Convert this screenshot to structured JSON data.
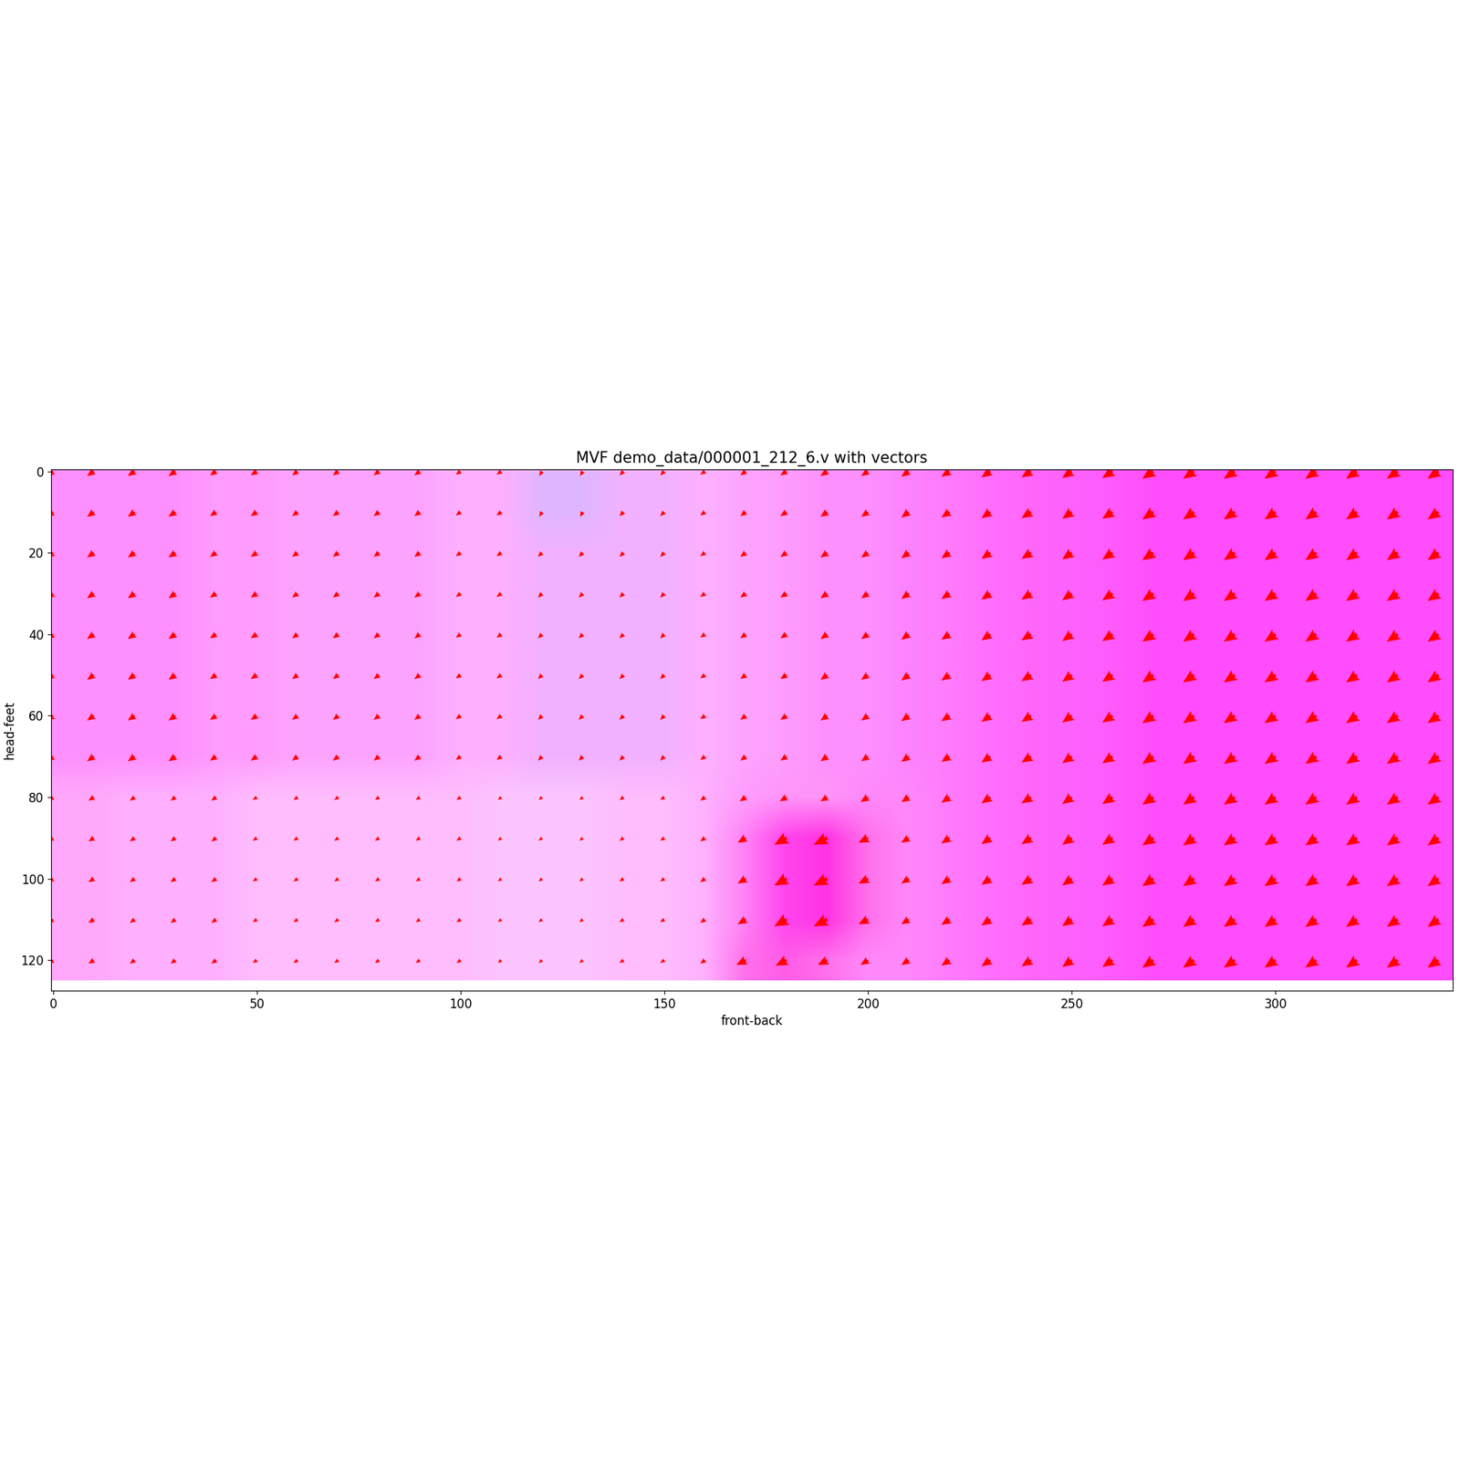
{
  "chart_data": {
    "type": "quiver",
    "title": "MVF demo_data/000001_212_6.v with vectors",
    "x_label": "front-back",
    "y_label": "head-feet",
    "color": "red",
    "xlim": [
      -0.5,
      343.5
    ],
    "ylim": [
      127.5,
      -0.5
    ],
    "xticks": [
      0,
      50,
      100,
      150,
      200,
      250,
      300
    ],
    "yticks": [
      0,
      20,
      40,
      60,
      80,
      100,
      120
    ],
    "x": [
      0,
      10,
      20,
      30,
      40,
      50,
      60,
      70,
      80,
      90,
      100,
      110,
      120,
      130,
      140,
      150,
      160,
      170,
      180,
      190,
      200,
      210,
      220,
      230,
      240,
      250,
      260,
      270,
      280,
      290,
      300,
      310,
      320,
      330,
      340
    ],
    "y": [
      0,
      10,
      20,
      30,
      40,
      50,
      60,
      70,
      80,
      90,
      100,
      110,
      120
    ],
    "u": [
      [
        -0.5,
        -0.5,
        -0.5,
        -0.5,
        -0.45,
        -0.45,
        -0.4,
        -0.4,
        -0.4,
        -0.4,
        -0.35,
        -0.35,
        -0.2,
        -0.2,
        -0.3,
        -0.3,
        -0.35,
        -0.4,
        -0.45,
        -0.5,
        -0.5,
        -0.55,
        -0.6,
        -0.65,
        -0.7,
        -0.7,
        -0.75,
        -0.8,
        -0.8,
        -0.8,
        -0.8,
        -0.8,
        -0.8,
        -0.8,
        -0.8
      ],
      [
        -0.5,
        -0.5,
        -0.5,
        -0.5,
        -0.45,
        -0.45,
        -0.4,
        -0.4,
        -0.4,
        -0.4,
        -0.35,
        -0.35,
        -0.2,
        -0.2,
        -0.3,
        -0.3,
        -0.35,
        -0.4,
        -0.45,
        -0.5,
        -0.5,
        -0.55,
        -0.6,
        -0.65,
        -0.7,
        -0.7,
        -0.75,
        -0.8,
        -0.8,
        -0.8,
        -0.8,
        -0.8,
        -0.8,
        -0.8,
        -0.8
      ],
      [
        -0.5,
        -0.5,
        -0.5,
        -0.5,
        -0.45,
        -0.45,
        -0.4,
        -0.4,
        -0.4,
        -0.4,
        -0.35,
        -0.35,
        -0.3,
        -0.3,
        -0.3,
        -0.3,
        -0.35,
        -0.4,
        -0.45,
        -0.5,
        -0.5,
        -0.55,
        -0.6,
        -0.65,
        -0.7,
        -0.7,
        -0.75,
        -0.8,
        -0.8,
        -0.8,
        -0.8,
        -0.8,
        -0.8,
        -0.8,
        -0.8
      ],
      [
        -0.5,
        -0.5,
        -0.5,
        -0.5,
        -0.45,
        -0.45,
        -0.4,
        -0.4,
        -0.4,
        -0.4,
        -0.35,
        -0.35,
        -0.3,
        -0.3,
        -0.3,
        -0.3,
        -0.35,
        -0.4,
        -0.45,
        -0.5,
        -0.5,
        -0.55,
        -0.6,
        -0.65,
        -0.7,
        -0.7,
        -0.75,
        -0.8,
        -0.8,
        -0.8,
        -0.8,
        -0.8,
        -0.8,
        -0.8,
        -0.8
      ],
      [
        -0.5,
        -0.5,
        -0.5,
        -0.5,
        -0.45,
        -0.45,
        -0.4,
        -0.4,
        -0.4,
        -0.4,
        -0.35,
        -0.35,
        -0.3,
        -0.3,
        -0.3,
        -0.3,
        -0.35,
        -0.4,
        -0.45,
        -0.5,
        -0.5,
        -0.55,
        -0.6,
        -0.65,
        -0.7,
        -0.7,
        -0.75,
        -0.8,
        -0.8,
        -0.8,
        -0.8,
        -0.8,
        -0.8,
        -0.8,
        -0.8
      ],
      [
        -0.5,
        -0.5,
        -0.5,
        -0.5,
        -0.45,
        -0.45,
        -0.4,
        -0.4,
        -0.4,
        -0.4,
        -0.35,
        -0.35,
        -0.3,
        -0.3,
        -0.3,
        -0.3,
        -0.35,
        -0.4,
        -0.45,
        -0.5,
        -0.5,
        -0.55,
        -0.6,
        -0.65,
        -0.7,
        -0.7,
        -0.75,
        -0.8,
        -0.8,
        -0.8,
        -0.8,
        -0.8,
        -0.8,
        -0.8,
        -0.8
      ],
      [
        -0.5,
        -0.5,
        -0.5,
        -0.5,
        -0.45,
        -0.45,
        -0.4,
        -0.4,
        -0.4,
        -0.4,
        -0.35,
        -0.35,
        -0.3,
        -0.3,
        -0.3,
        -0.3,
        -0.35,
        -0.4,
        -0.45,
        -0.5,
        -0.5,
        -0.55,
        -0.6,
        -0.65,
        -0.7,
        -0.7,
        -0.75,
        -0.8,
        -0.8,
        -0.8,
        -0.8,
        -0.8,
        -0.8,
        -0.8,
        -0.8
      ],
      [
        -0.5,
        -0.5,
        -0.5,
        -0.5,
        -0.45,
        -0.45,
        -0.4,
        -0.4,
        -0.4,
        -0.4,
        -0.35,
        -0.35,
        -0.3,
        -0.3,
        -0.3,
        -0.3,
        -0.35,
        -0.4,
        -0.45,
        -0.5,
        -0.5,
        -0.55,
        -0.6,
        -0.65,
        -0.7,
        -0.7,
        -0.75,
        -0.8,
        -0.8,
        -0.8,
        -0.8,
        -0.8,
        -0.8,
        -0.8,
        -0.8
      ],
      [
        -0.4,
        -0.4,
        -0.35,
        -0.35,
        -0.35,
        -0.3,
        -0.3,
        -0.3,
        -0.3,
        -0.3,
        -0.3,
        -0.25,
        -0.25,
        -0.25,
        -0.3,
        -0.3,
        -0.35,
        -0.45,
        -0.5,
        -0.5,
        -0.55,
        -0.55,
        -0.6,
        -0.65,
        -0.7,
        -0.7,
        -0.75,
        -0.8,
        -0.8,
        -0.8,
        -0.8,
        -0.8,
        -0.8,
        -0.8,
        -0.8
      ],
      [
        -0.4,
        -0.4,
        -0.35,
        -0.35,
        -0.35,
        -0.3,
        -0.3,
        -0.3,
        -0.3,
        -0.3,
        -0.3,
        -0.25,
        -0.25,
        -0.25,
        -0.3,
        -0.3,
        -0.35,
        -0.6,
        -0.9,
        -1.0,
        -0.7,
        -0.55,
        -0.6,
        -0.65,
        -0.7,
        -0.7,
        -0.75,
        -0.8,
        -0.8,
        -0.8,
        -0.8,
        -0.8,
        -0.8,
        -0.8,
        -0.8
      ],
      [
        -0.4,
        -0.4,
        -0.35,
        -0.35,
        -0.35,
        -0.3,
        -0.3,
        -0.3,
        -0.3,
        -0.3,
        -0.3,
        -0.25,
        -0.25,
        -0.25,
        -0.3,
        -0.3,
        -0.35,
        -0.6,
        -0.9,
        -1.0,
        -0.7,
        -0.55,
        -0.6,
        -0.65,
        -0.7,
        -0.7,
        -0.75,
        -0.8,
        -0.8,
        -0.8,
        -0.8,
        -0.8,
        -0.8,
        -0.8,
        -0.8
      ],
      [
        -0.4,
        -0.4,
        -0.35,
        -0.35,
        -0.35,
        -0.3,
        -0.3,
        -0.3,
        -0.3,
        -0.3,
        -0.3,
        -0.25,
        -0.25,
        -0.25,
        -0.3,
        -0.3,
        -0.35,
        -0.6,
        -0.9,
        -1.0,
        -0.7,
        -0.55,
        -0.6,
        -0.65,
        -0.7,
        -0.7,
        -0.75,
        -0.8,
        -0.8,
        -0.8,
        -0.8,
        -0.8,
        -0.8,
        -0.8,
        -0.8
      ],
      [
        -0.4,
        -0.4,
        -0.35,
        -0.35,
        -0.35,
        -0.3,
        -0.3,
        -0.3,
        -0.3,
        -0.3,
        -0.3,
        -0.25,
        -0.25,
        -0.25,
        -0.3,
        -0.3,
        -0.35,
        -0.7,
        -0.8,
        -0.7,
        -0.55,
        -0.55,
        -0.6,
        -0.65,
        -0.7,
        -0.7,
        -0.75,
        -0.8,
        -0.8,
        -0.8,
        -0.8,
        -0.8,
        -0.8,
        -0.8,
        -0.8
      ]
    ],
    "v": [
      [
        0.35,
        0.35,
        0.35,
        0.35,
        0.3,
        0.3,
        0.3,
        0.3,
        0.3,
        0.3,
        0.25,
        0.25,
        0.35,
        0.35,
        0.3,
        0.3,
        0.25,
        0.3,
        0.3,
        0.35,
        0.35,
        0.4,
        0.4,
        0.45,
        0.45,
        0.5,
        0.5,
        0.55,
        0.55,
        0.55,
        0.55,
        0.55,
        0.55,
        0.55,
        0.55
      ],
      [
        0.35,
        0.35,
        0.35,
        0.35,
        0.3,
        0.3,
        0.3,
        0.3,
        0.3,
        0.3,
        0.25,
        0.25,
        0.35,
        0.35,
        0.3,
        0.3,
        0.25,
        0.3,
        0.3,
        0.35,
        0.35,
        0.4,
        0.4,
        0.45,
        0.45,
        0.5,
        0.5,
        0.55,
        0.55,
        0.55,
        0.55,
        0.55,
        0.55,
        0.55,
        0.55
      ],
      [
        0.35,
        0.35,
        0.35,
        0.35,
        0.3,
        0.3,
        0.3,
        0.3,
        0.3,
        0.3,
        0.25,
        0.25,
        0.3,
        0.3,
        0.3,
        0.3,
        0.25,
        0.3,
        0.3,
        0.35,
        0.35,
        0.4,
        0.4,
        0.45,
        0.45,
        0.5,
        0.5,
        0.55,
        0.55,
        0.55,
        0.55,
        0.55,
        0.55,
        0.55,
        0.55
      ],
      [
        0.35,
        0.35,
        0.35,
        0.35,
        0.3,
        0.3,
        0.3,
        0.3,
        0.3,
        0.3,
        0.25,
        0.25,
        0.3,
        0.3,
        0.3,
        0.3,
        0.25,
        0.3,
        0.3,
        0.35,
        0.35,
        0.4,
        0.4,
        0.45,
        0.45,
        0.5,
        0.5,
        0.55,
        0.55,
        0.55,
        0.55,
        0.55,
        0.55,
        0.55,
        0.55
      ],
      [
        0.35,
        0.35,
        0.35,
        0.35,
        0.3,
        0.3,
        0.3,
        0.3,
        0.3,
        0.3,
        0.25,
        0.25,
        0.3,
        0.3,
        0.3,
        0.3,
        0.25,
        0.3,
        0.3,
        0.35,
        0.35,
        0.4,
        0.4,
        0.45,
        0.45,
        0.5,
        0.5,
        0.55,
        0.55,
        0.55,
        0.55,
        0.55,
        0.55,
        0.55,
        0.55
      ],
      [
        0.35,
        0.35,
        0.35,
        0.35,
        0.3,
        0.3,
        0.3,
        0.3,
        0.3,
        0.3,
        0.25,
        0.25,
        0.3,
        0.3,
        0.3,
        0.3,
        0.25,
        0.3,
        0.3,
        0.35,
        0.35,
        0.4,
        0.4,
        0.45,
        0.45,
        0.5,
        0.5,
        0.55,
        0.55,
        0.55,
        0.55,
        0.55,
        0.55,
        0.55,
        0.55
      ],
      [
        0.35,
        0.35,
        0.35,
        0.35,
        0.3,
        0.3,
        0.3,
        0.3,
        0.3,
        0.3,
        0.25,
        0.25,
        0.3,
        0.3,
        0.3,
        0.3,
        0.25,
        0.3,
        0.3,
        0.35,
        0.35,
        0.4,
        0.4,
        0.45,
        0.45,
        0.5,
        0.5,
        0.55,
        0.55,
        0.55,
        0.55,
        0.55,
        0.55,
        0.55,
        0.55
      ],
      [
        0.35,
        0.35,
        0.35,
        0.35,
        0.3,
        0.3,
        0.3,
        0.3,
        0.3,
        0.3,
        0.25,
        0.25,
        0.3,
        0.3,
        0.3,
        0.3,
        0.25,
        0.3,
        0.3,
        0.35,
        0.35,
        0.4,
        0.4,
        0.45,
        0.45,
        0.5,
        0.5,
        0.55,
        0.55,
        0.55,
        0.55,
        0.55,
        0.55,
        0.55,
        0.55
      ],
      [
        0.25,
        0.25,
        0.25,
        0.25,
        0.25,
        0.2,
        0.2,
        0.2,
        0.2,
        0.2,
        0.2,
        0.2,
        0.2,
        0.2,
        0.2,
        0.2,
        0.25,
        0.3,
        0.3,
        0.3,
        0.35,
        0.35,
        0.4,
        0.45,
        0.45,
        0.5,
        0.5,
        0.55,
        0.55,
        0.55,
        0.55,
        0.55,
        0.55,
        0.55,
        0.55
      ],
      [
        0.25,
        0.25,
        0.25,
        0.25,
        0.25,
        0.2,
        0.2,
        0.2,
        0.2,
        0.2,
        0.2,
        0.2,
        0.2,
        0.2,
        0.2,
        0.2,
        0.25,
        0.35,
        0.5,
        0.5,
        0.35,
        0.35,
        0.4,
        0.45,
        0.45,
        0.5,
        0.5,
        0.55,
        0.55,
        0.55,
        0.55,
        0.55,
        0.55,
        0.55,
        0.55
      ],
      [
        0.25,
        0.25,
        0.25,
        0.25,
        0.25,
        0.2,
        0.2,
        0.2,
        0.2,
        0.2,
        0.2,
        0.2,
        0.2,
        0.2,
        0.2,
        0.2,
        0.25,
        0.35,
        0.5,
        0.5,
        0.35,
        0.35,
        0.4,
        0.45,
        0.45,
        0.5,
        0.5,
        0.55,
        0.55,
        0.55,
        0.55,
        0.55,
        0.55,
        0.55,
        0.55
      ],
      [
        0.25,
        0.25,
        0.25,
        0.25,
        0.25,
        0.2,
        0.2,
        0.2,
        0.2,
        0.2,
        0.2,
        0.2,
        0.2,
        0.2,
        0.2,
        0.2,
        0.25,
        0.35,
        0.5,
        0.5,
        0.35,
        0.35,
        0.4,
        0.45,
        0.45,
        0.5,
        0.5,
        0.55,
        0.55,
        0.55,
        0.55,
        0.55,
        0.55,
        0.55,
        0.55
      ],
      [
        0.25,
        0.25,
        0.25,
        0.25,
        0.25,
        0.2,
        0.2,
        0.2,
        0.2,
        0.2,
        0.2,
        0.2,
        0.2,
        0.2,
        0.2,
        0.2,
        0.25,
        0.35,
        0.4,
        0.35,
        0.35,
        0.35,
        0.4,
        0.45,
        0.45,
        0.5,
        0.5,
        0.55,
        0.55,
        0.55,
        0.55,
        0.55,
        0.55,
        0.55,
        0.55
      ]
    ]
  }
}
